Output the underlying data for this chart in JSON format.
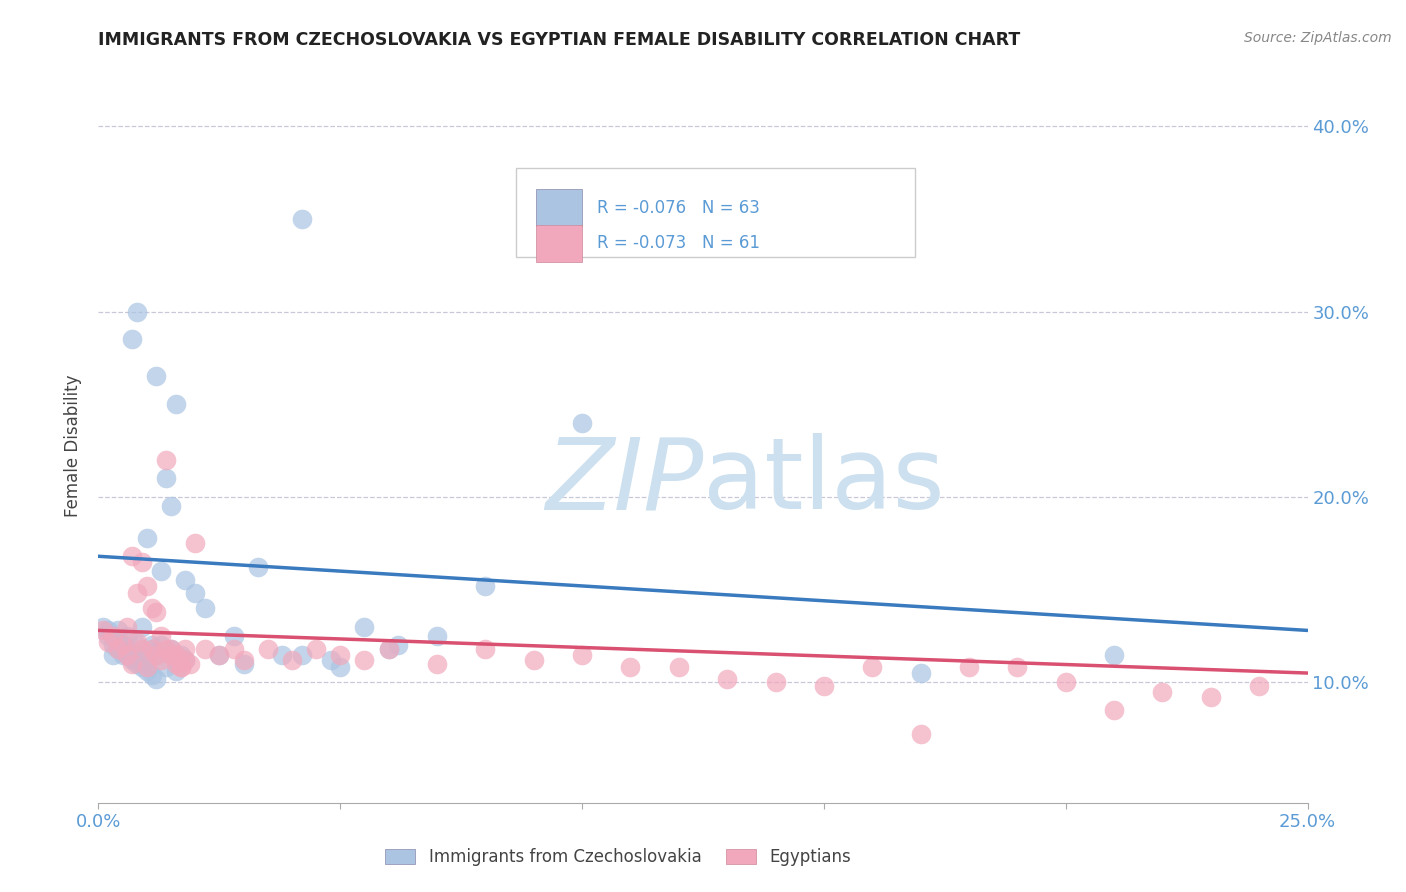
{
  "title": "IMMIGRANTS FROM CZECHOSLOVAKIA VS EGYPTIAN FEMALE DISABILITY CORRELATION CHART",
  "source_text": "Source: ZipAtlas.com",
  "ylabel": "Female Disability",
  "legend_label1": "Immigrants from Czechoslovakia",
  "legend_label2": "Egyptians",
  "legend_R1": "R = -0.076",
  "legend_N1": "N = 63",
  "legend_R2": "R = -0.073",
  "legend_N2": "N = 61",
  "color1": "#aac4e2",
  "color2": "#f2a8bc",
  "line_color1": "#3a7abf",
  "line_color2": "#d95070",
  "title_color": "#222222",
  "axis_tick_color": "#5b9bd5",
  "ylabel_color": "#444444",
  "grid_color": "#c8c8d8",
  "watermark_color": "#cce0ef",
  "background_color": "#ffffff",
  "xlim": [
    0.0,
    0.25
  ],
  "ylim": [
    0.035,
    0.42
  ],
  "ytick_labels": [
    "10.0%",
    "20.0%",
    "30.0%",
    "40.0%"
  ],
  "ytick_values": [
    0.1,
    0.2,
    0.3,
    0.4
  ],
  "xtick_labels": [
    "0.0%",
    "",
    "",
    "",
    "",
    "25.0%"
  ],
  "xtick_values": [
    0.0,
    0.05,
    0.1,
    0.15,
    0.2,
    0.25
  ],
  "scatter_x1": [
    0.001,
    0.002,
    0.002,
    0.003,
    0.003,
    0.004,
    0.004,
    0.005,
    0.005,
    0.006,
    0.006,
    0.007,
    0.007,
    0.008,
    0.008,
    0.009,
    0.009,
    0.01,
    0.01,
    0.011,
    0.011,
    0.012,
    0.012,
    0.013,
    0.014,
    0.015,
    0.016,
    0.018,
    0.02,
    0.022,
    0.025,
    0.028,
    0.03,
    0.033,
    0.038,
    0.042,
    0.048,
    0.055,
    0.062,
    0.07,
    0.08,
    0.042,
    0.05,
    0.06,
    0.1,
    0.17,
    0.21,
    0.006,
    0.007,
    0.008,
    0.009,
    0.01,
    0.011,
    0.012,
    0.013,
    0.014,
    0.015,
    0.016,
    0.017,
    0.018,
    0.003,
    0.004,
    0.005
  ],
  "scatter_y1": [
    0.13,
    0.125,
    0.128,
    0.125,
    0.12,
    0.128,
    0.122,
    0.12,
    0.115,
    0.118,
    0.125,
    0.112,
    0.285,
    0.11,
    0.3,
    0.108,
    0.13,
    0.106,
    0.178,
    0.104,
    0.12,
    0.102,
    0.265,
    0.16,
    0.21,
    0.195,
    0.25,
    0.155,
    0.148,
    0.14,
    0.115,
    0.125,
    0.11,
    0.162,
    0.115,
    0.35,
    0.112,
    0.13,
    0.12,
    0.125,
    0.152,
    0.115,
    0.108,
    0.118,
    0.24,
    0.105,
    0.115,
    0.115,
    0.113,
    0.12,
    0.115,
    0.112,
    0.118,
    0.115,
    0.12,
    0.108,
    0.118,
    0.106,
    0.115,
    0.112,
    0.115,
    0.118,
    0.12
  ],
  "scatter_x2": [
    0.001,
    0.002,
    0.003,
    0.004,
    0.005,
    0.006,
    0.007,
    0.008,
    0.009,
    0.01,
    0.011,
    0.012,
    0.013,
    0.014,
    0.015,
    0.016,
    0.017,
    0.018,
    0.019,
    0.02,
    0.022,
    0.025,
    0.028,
    0.03,
    0.035,
    0.04,
    0.045,
    0.05,
    0.055,
    0.06,
    0.07,
    0.08,
    0.09,
    0.1,
    0.11,
    0.12,
    0.13,
    0.14,
    0.15,
    0.16,
    0.17,
    0.18,
    0.19,
    0.2,
    0.21,
    0.22,
    0.23,
    0.24,
    0.006,
    0.007,
    0.008,
    0.009,
    0.01,
    0.011,
    0.012,
    0.013,
    0.014,
    0.015,
    0.016,
    0.017,
    0.018
  ],
  "scatter_y2": [
    0.128,
    0.122,
    0.125,
    0.118,
    0.12,
    0.115,
    0.11,
    0.122,
    0.118,
    0.108,
    0.118,
    0.115,
    0.112,
    0.22,
    0.118,
    0.115,
    0.108,
    0.118,
    0.11,
    0.175,
    0.118,
    0.115,
    0.118,
    0.112,
    0.118,
    0.112,
    0.118,
    0.115,
    0.112,
    0.118,
    0.11,
    0.118,
    0.112,
    0.115,
    0.108,
    0.108,
    0.102,
    0.1,
    0.098,
    0.108,
    0.072,
    0.108,
    0.108,
    0.1,
    0.085,
    0.095,
    0.092,
    0.098,
    0.13,
    0.168,
    0.148,
    0.165,
    0.152,
    0.14,
    0.138,
    0.125,
    0.118,
    0.115,
    0.11,
    0.108,
    0.112
  ],
  "trendline1_x": [
    0.0,
    0.25
  ],
  "trendline1_y": [
    0.168,
    0.128
  ],
  "trendline2_x": [
    0.0,
    0.25
  ],
  "trendline2_y": [
    0.128,
    0.105
  ]
}
